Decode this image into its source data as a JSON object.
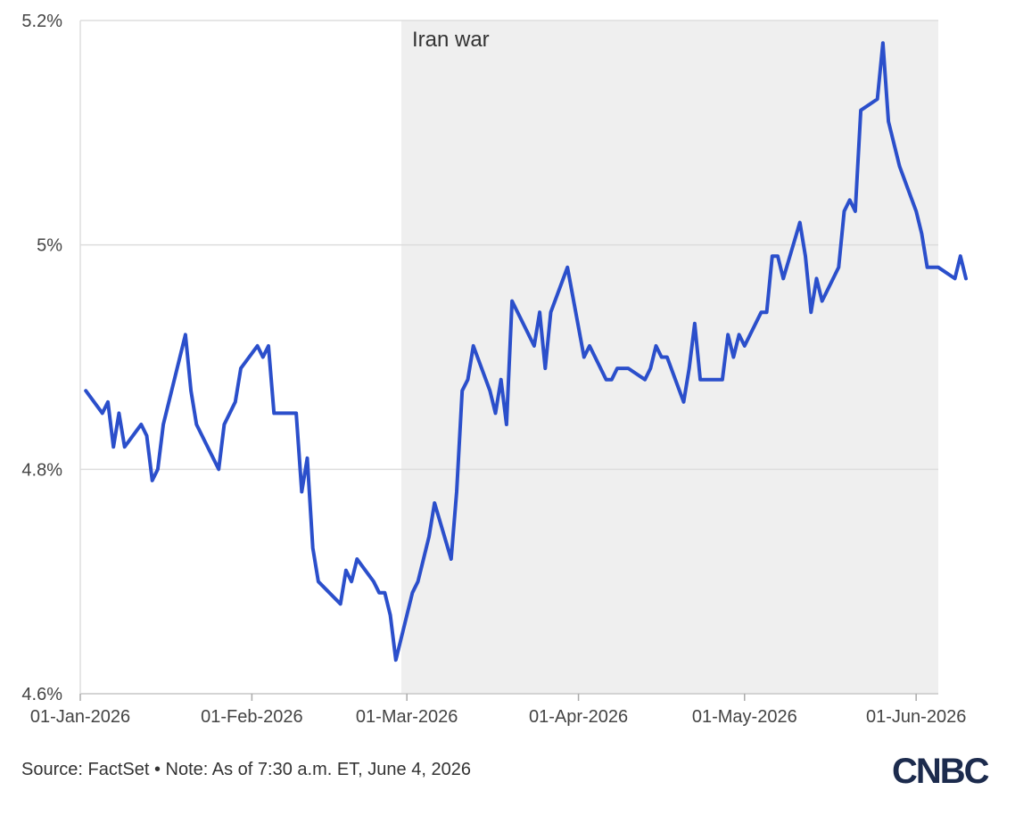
{
  "chart_data": {
    "type": "line",
    "title": "",
    "xlabel": "",
    "ylabel": "",
    "ylim": [
      4.6,
      5.2
    ],
    "xlim": [
      "2026-01-01",
      "2026-06-05"
    ],
    "y_ticks": [
      {
        "value": 4.6,
        "label": "4.6%"
      },
      {
        "value": 4.8,
        "label": "4.8%"
      },
      {
        "value": 5.0,
        "label": "5%"
      },
      {
        "value": 5.2,
        "label": "5.2%"
      }
    ],
    "x_ticks": [
      {
        "value": "2026-01-01",
        "label": "01-Jan-2026"
      },
      {
        "value": "2026-02-01",
        "label": "01-Feb-2026"
      },
      {
        "value": "2026-03-01",
        "label": "01-Mar-2026"
      },
      {
        "value": "2026-04-01",
        "label": "01-Apr-2026"
      },
      {
        "value": "2026-05-01",
        "label": "01-May-2026"
      },
      {
        "value": "2026-06-01",
        "label": "01-Jun-2026"
      }
    ],
    "grid": "horizontal",
    "shaded_region": {
      "start": "2026-02-28",
      "end": "2026-06-05",
      "label": "Iran war",
      "color": "#efefef"
    },
    "series": [
      {
        "color": "#2b4fcb",
        "points": [
          [
            "2026-01-02",
            4.87
          ],
          [
            "2026-01-05",
            4.85
          ],
          [
            "2026-01-06",
            4.86
          ],
          [
            "2026-01-07",
            4.82
          ],
          [
            "2026-01-08",
            4.85
          ],
          [
            "2026-01-09",
            4.82
          ],
          [
            "2026-01-12",
            4.84
          ],
          [
            "2026-01-13",
            4.83
          ],
          [
            "2026-01-14",
            4.79
          ],
          [
            "2026-01-15",
            4.8
          ],
          [
            "2026-01-16",
            4.84
          ],
          [
            "2026-01-20",
            4.92
          ],
          [
            "2026-01-21",
            4.87
          ],
          [
            "2026-01-22",
            4.84
          ],
          [
            "2026-01-26",
            4.8
          ],
          [
            "2026-01-27",
            4.84
          ],
          [
            "2026-01-29",
            4.86
          ],
          [
            "2026-01-30",
            4.89
          ],
          [
            "2026-02-02",
            4.91
          ],
          [
            "2026-02-03",
            4.9
          ],
          [
            "2026-02-04",
            4.91
          ],
          [
            "2026-02-05",
            4.85
          ],
          [
            "2026-02-09",
            4.85
          ],
          [
            "2026-02-10",
            4.78
          ],
          [
            "2026-02-11",
            4.81
          ],
          [
            "2026-02-12",
            4.73
          ],
          [
            "2026-02-13",
            4.7
          ],
          [
            "2026-02-17",
            4.68
          ],
          [
            "2026-02-18",
            4.71
          ],
          [
            "2026-02-19",
            4.7
          ],
          [
            "2026-02-20",
            4.72
          ],
          [
            "2026-02-23",
            4.7
          ],
          [
            "2026-02-24",
            4.69
          ],
          [
            "2026-02-25",
            4.69
          ],
          [
            "2026-02-26",
            4.67
          ],
          [
            "2026-02-27",
            4.63
          ],
          [
            "2026-03-02",
            4.69
          ],
          [
            "2026-03-03",
            4.7
          ],
          [
            "2026-03-05",
            4.74
          ],
          [
            "2026-03-06",
            4.77
          ],
          [
            "2026-03-09",
            4.72
          ],
          [
            "2026-03-10",
            4.78
          ],
          [
            "2026-03-11",
            4.87
          ],
          [
            "2026-03-12",
            4.88
          ],
          [
            "2026-03-13",
            4.91
          ],
          [
            "2026-03-16",
            4.87
          ],
          [
            "2026-03-17",
            4.85
          ],
          [
            "2026-03-18",
            4.88
          ],
          [
            "2026-03-19",
            4.84
          ],
          [
            "2026-03-20",
            4.95
          ],
          [
            "2026-03-23",
            4.92
          ],
          [
            "2026-03-24",
            4.91
          ],
          [
            "2026-03-25",
            4.94
          ],
          [
            "2026-03-26",
            4.89
          ],
          [
            "2026-03-27",
            4.94
          ],
          [
            "2026-03-30",
            4.98
          ],
          [
            "2026-04-02",
            4.9
          ],
          [
            "2026-04-03",
            4.91
          ],
          [
            "2026-04-06",
            4.88
          ],
          [
            "2026-04-07",
            4.88
          ],
          [
            "2026-04-08",
            4.89
          ],
          [
            "2026-04-09",
            4.89
          ],
          [
            "2026-04-10",
            4.89
          ],
          [
            "2026-04-13",
            4.88
          ],
          [
            "2026-04-14",
            4.89
          ],
          [
            "2026-04-15",
            4.91
          ],
          [
            "2026-04-16",
            4.9
          ],
          [
            "2026-04-17",
            4.9
          ],
          [
            "2026-04-20",
            4.86
          ],
          [
            "2026-04-21",
            4.89
          ],
          [
            "2026-04-22",
            4.93
          ],
          [
            "2026-04-23",
            4.88
          ],
          [
            "2026-04-27",
            4.88
          ],
          [
            "2026-04-28",
            4.92
          ],
          [
            "2026-04-29",
            4.9
          ],
          [
            "2026-04-30",
            4.92
          ],
          [
            "2026-05-01",
            4.91
          ],
          [
            "2026-05-04",
            4.94
          ],
          [
            "2026-05-05",
            4.94
          ],
          [
            "2026-05-06",
            4.99
          ],
          [
            "2026-05-07",
            4.99
          ],
          [
            "2026-05-08",
            4.97
          ],
          [
            "2026-05-11",
            5.02
          ],
          [
            "2026-05-12",
            4.99
          ],
          [
            "2026-05-13",
            4.94
          ],
          [
            "2026-05-14",
            4.97
          ],
          [
            "2026-05-15",
            4.95
          ],
          [
            "2026-05-18",
            4.98
          ],
          [
            "2026-05-19",
            5.03
          ],
          [
            "2026-05-20",
            5.04
          ],
          [
            "2026-05-21",
            5.03
          ],
          [
            "2026-05-22",
            5.12
          ],
          [
            "2026-05-25",
            5.13
          ],
          [
            "2026-05-26",
            5.18
          ],
          [
            "2026-05-27",
            5.11
          ],
          [
            "2026-05-29",
            5.07
          ],
          [
            "2026-06-01",
            5.03
          ],
          [
            "2026-06-02",
            5.01
          ],
          [
            "2026-06-03",
            4.98
          ],
          [
            "2026-06-04",
            4.98
          ],
          [
            "2026-06-05",
            4.98
          ],
          [
            "2026-06-08",
            4.97
          ],
          [
            "2026-06-09",
            4.99
          ],
          [
            "2026-06-10",
            4.97
          ]
        ]
      }
    ]
  },
  "footer": {
    "source": "Source: FactSet • Note: As of 7:30 a.m. ET, June 4, 2026"
  },
  "logo": {
    "text": "CNBC",
    "color": "#1c2b4d",
    "accent_colors": [
      "#3a6fd8",
      "#2b4fcb",
      "#1c2b4d"
    ]
  }
}
